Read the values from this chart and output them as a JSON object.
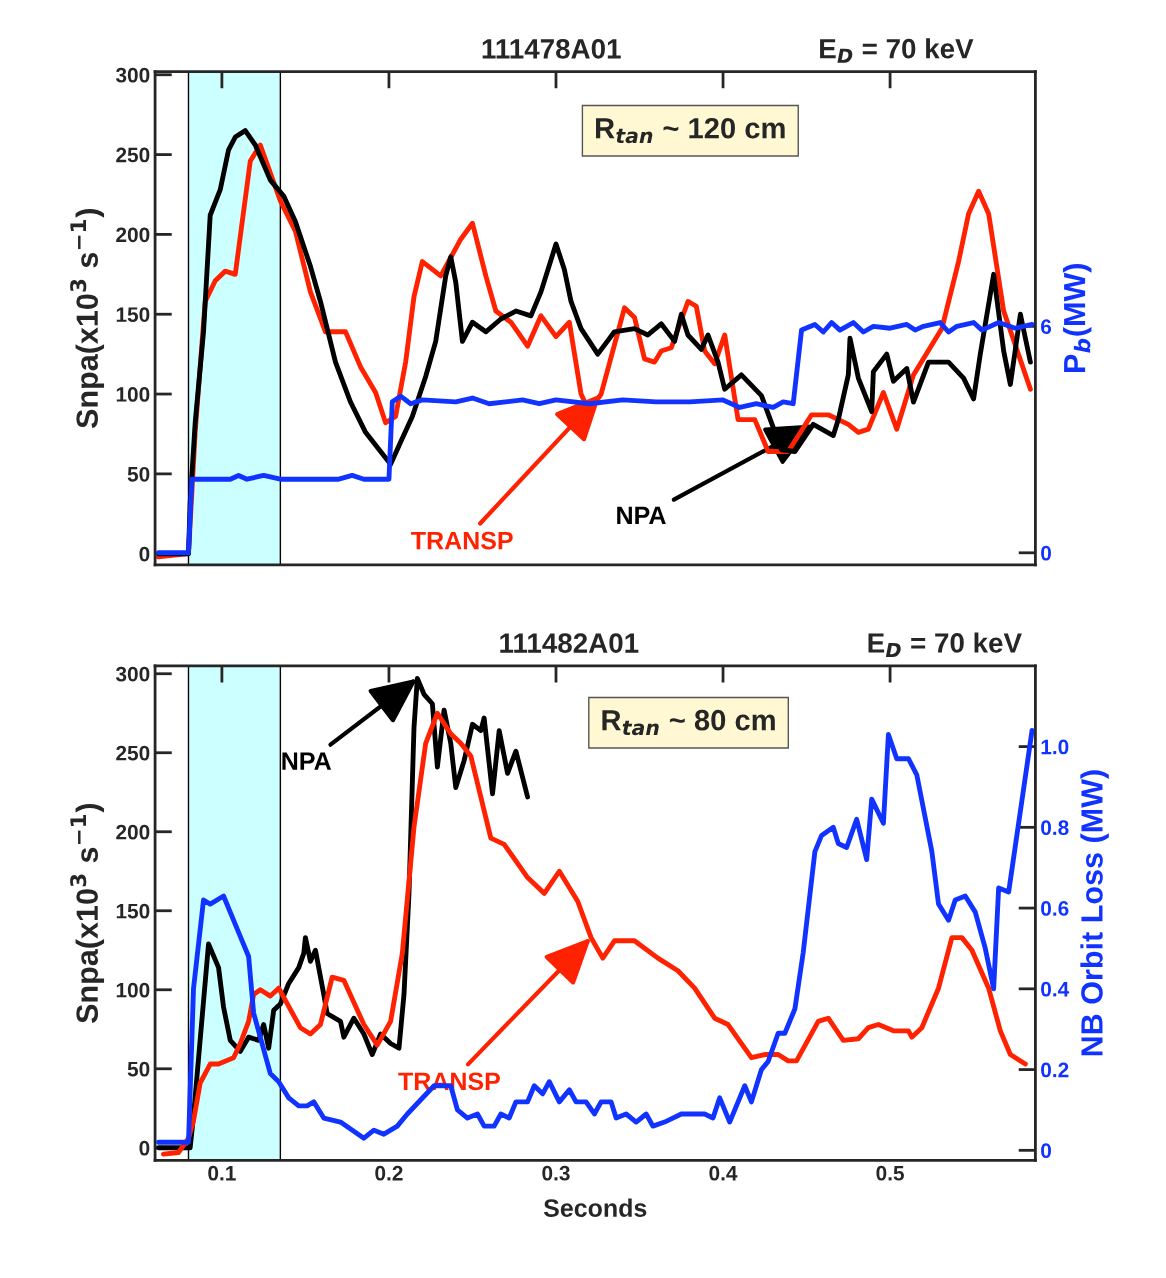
{
  "chart_data": [
    {
      "type": "line",
      "title": "111478A01",
      "subtitle": "E$_{D}$ = 70 keV",
      "ylabel": "Snpa(x10$^{3}$ s$^{−1}$)",
      "y2label": "P$_{b}$(MW)",
      "xlim": [
        0.06,
        0.587
      ],
      "xticks": [
        0.1,
        0.2,
        0.3,
        0.4,
        0.5
      ],
      "ylim": [
        -7,
        302
      ],
      "yticks": [
        0,
        50,
        100,
        150,
        200,
        250,
        300
      ],
      "y2lim": [
        -0.32,
        12.75
      ],
      "y2ticks": [
        0,
        6
      ],
      "tick_labels": "y",
      "bands": [
        {
          "axis": "x",
          "from": 0.08,
          "to": 0.135,
          "color": "#ccffff"
        }
      ],
      "annotations": [
        "R$_{tan}$ ~ 120 cm",
        {
          "text": "TRANSP",
          "x": 0.327,
          "y": 100
        },
        {
          "text": "NPA",
          "x": 0.454,
          "y": 81
        }
      ],
      "series": [
        {
          "color": "#ff2200",
          "x": [
            0.062,
            0.08,
            0.084,
            0.09,
            0.096,
            0.102,
            0.108,
            0.117,
            0.123,
            0.135,
            0.144,
            0.153,
            0.162,
            0.174,
            0.183,
            0.192,
            0.198,
            0.204,
            0.21,
            0.215,
            0.22,
            0.231,
            0.243,
            0.25,
            0.258,
            0.264,
            0.273,
            0.283,
            0.291,
            0.3,
            0.308,
            0.315,
            0.32,
            0.327,
            0.341,
            0.347,
            0.353,
            0.359,
            0.363,
            0.369,
            0.379,
            0.384,
            0.389,
            0.395,
            0.401,
            0.409,
            0.419,
            0.427,
            0.439,
            0.453,
            0.463,
            0.475,
            0.481,
            0.487,
            0.496,
            0.504,
            0.514,
            0.531,
            0.541,
            0.547,
            0.553,
            0.559,
            0.568,
            0.584
          ],
          "values": [
            -2,
            0,
            76,
            158,
            171,
            177,
            175,
            246,
            256,
            221,
            202,
            164,
            139,
            139,
            117,
            101,
            82,
            86,
            120,
            161,
            183,
            174,
            197,
            207,
            174,
            152,
            145,
            130,
            149,
            136,
            145,
            100,
            89,
            100,
            154,
            148,
            122,
            120,
            127,
            129,
            158,
            155,
            127,
            119,
            137,
            84,
            84,
            64,
            64,
            87,
            87,
            81,
            76,
            78,
            101,
            78,
            112,
            141,
            183,
            213,
            227,
            213,
            152,
            103
          ]
        },
        {
          "color": "#000000",
          "x": [
            0.062,
            0.08,
            0.081,
            0.084,
            0.089,
            0.093,
            0.099,
            0.104,
            0.108,
            0.114,
            0.12,
            0.129,
            0.137,
            0.144,
            0.153,
            0.159,
            0.168,
            0.177,
            0.186,
            0.195,
            0.201,
            0.207,
            0.214,
            0.222,
            0.228,
            0.234,
            0.237,
            0.24,
            0.244,
            0.25,
            0.258,
            0.267,
            0.276,
            0.285,
            0.291,
            0.3,
            0.305,
            0.309,
            0.315,
            0.325,
            0.335,
            0.347,
            0.355,
            0.363,
            0.371,
            0.375,
            0.379,
            0.387,
            0.391,
            0.397,
            0.401,
            0.411,
            0.423,
            0.435,
            0.443,
            0.454,
            0.466,
            0.469,
            0.475,
            0.476,
            0.481,
            0.489,
            0.49,
            0.498,
            0.502,
            0.51,
            0.514,
            0.523,
            0.535,
            0.544,
            0.55,
            0.554,
            0.562,
            0.568,
            0.572,
            0.578,
            0.584
          ],
          "values": [
            0,
            0,
            32,
            82,
            139,
            212,
            228,
            253,
            261,
            265,
            256,
            234,
            224,
            208,
            180,
            158,
            120,
            95,
            76,
            64,
            56,
            70,
            86,
            111,
            133,
            174,
            186,
            170,
            133,
            145,
            139,
            147,
            152,
            149,
            164,
            194,
            178,
            158,
            141,
            125,
            139,
            141,
            137,
            144,
            133,
            150,
            137,
            128,
            137,
            120,
            103,
            112,
            99,
            65,
            64,
            81,
            74,
            84,
            112,
            135,
            110,
            89,
            114,
            125,
            108,
            116,
            95,
            120,
            120,
            110,
            97,
            125,
            175,
            127,
            106,
            150,
            120
          ]
        },
        {
          "color": "#1133ff",
          "axis": "y2",
          "x": [
            0.062,
            0.08,
            0.082,
            0.105,
            0.11,
            0.115,
            0.125,
            0.135,
            0.17,
            0.178,
            0.185,
            0.2,
            0.202,
            0.207,
            0.213,
            0.22,
            0.24,
            0.25,
            0.26,
            0.28,
            0.29,
            0.3,
            0.32,
            0.34,
            0.36,
            0.38,
            0.4,
            0.41,
            0.42,
            0.43,
            0.436,
            0.442,
            0.447,
            0.455,
            0.46,
            0.465,
            0.47,
            0.478,
            0.484,
            0.49,
            0.5,
            0.51,
            0.515,
            0.52,
            0.53,
            0.535,
            0.54,
            0.55,
            0.555,
            0.565,
            0.575,
            0.585
          ],
          "values": [
            0,
            0,
            1.95,
            1.95,
            2.05,
            1.95,
            2.05,
            1.95,
            1.95,
            2.05,
            1.95,
            1.95,
            4.0,
            4.15,
            3.95,
            4.05,
            4.0,
            4.1,
            3.95,
            4.05,
            3.95,
            4.05,
            3.95,
            4.05,
            4.0,
            4.0,
            4.05,
            3.85,
            3.95,
            3.85,
            4.0,
            3.95,
            5.9,
            6.05,
            5.85,
            6.1,
            5.9,
            6.1,
            5.85,
            6.0,
            5.95,
            6.05,
            5.9,
            6.0,
            6.1,
            5.85,
            6.0,
            6.1,
            5.9,
            6.1,
            5.95,
            6.05
          ]
        }
      ]
    },
    {
      "type": "line",
      "title": "111482A01",
      "subtitle": "E$_{D}$ = 70 keV",
      "xlabel": "Seconds",
      "ylabel": "Snpa(x10$^{3}$ s$^{−1}$)",
      "y2label": "NB Orbit Loss (MW)",
      "xlim": [
        0.06,
        0.587
      ],
      "xticks": [
        0.1,
        0.2,
        0.3,
        0.4,
        0.5
      ],
      "ylim": [
        -8,
        305
      ],
      "yticks": [
        0,
        50,
        100,
        150,
        200,
        250,
        300
      ],
      "y2lim": [
        -0.025,
        1.2
      ],
      "y2ticks": [
        0,
        0.2,
        0.4,
        0.6,
        0.8,
        {
          "value": 1,
          "label": "1.0"
        }
      ],
      "bands": [
        {
          "axis": "x",
          "from": 0.08,
          "to": 0.135,
          "color": "#ccffff"
        }
      ],
      "annotations": [
        "R$_{tan}$ ~ 80 cm",
        {
          "text": "NPA",
          "x": 0.217,
          "y": 297
        },
        {
          "text": "TRANSP",
          "x": 0.321,
          "y": 133
        }
      ],
      "series": [
        {
          "color": "#000000",
          "x": [
            0.062,
            0.08,
            0.081,
            0.083,
            0.092,
            0.098,
            0.101,
            0.105,
            0.111,
            0.116,
            0.122,
            0.125,
            0.128,
            0.131,
            0.135,
            0.14,
            0.146,
            0.149,
            0.15,
            0.153,
            0.156,
            0.161,
            0.163,
            0.171,
            0.173,
            0.179,
            0.185,
            0.19,
            0.195,
            0.201,
            0.206,
            0.209,
            0.212,
            0.215,
            0.217,
            0.221,
            0.226,
            0.229,
            0.233,
            0.237,
            0.24,
            0.245,
            0.25,
            0.255,
            0.257,
            0.262,
            0.266,
            0.271,
            0.276,
            0.283
          ],
          "values": [
            0,
            0,
            0,
            20,
            129,
            114,
            89,
            68,
            61,
            70,
            68,
            78,
            63,
            87,
            91,
            104,
            114,
            123,
            133,
            118,
            125,
            97,
            85,
            80,
            70,
            82,
            72,
            59,
            72,
            66,
            63,
            97,
            161,
            266,
            297,
            287,
            281,
            241,
            277,
            256,
            228,
            245,
            268,
            264,
            272,
            224,
            264,
            237,
            251,
            222
          ]
        },
        {
          "color": "#ff2200",
          "x": [
            0.065,
            0.074,
            0.08,
            0.083,
            0.087,
            0.093,
            0.098,
            0.107,
            0.111,
            0.116,
            0.119,
            0.123,
            0.129,
            0.134,
            0.147,
            0.153,
            0.159,
            0.166,
            0.173,
            0.185,
            0.193,
            0.201,
            0.208,
            0.215,
            0.222,
            0.229,
            0.237,
            0.243,
            0.249,
            0.261,
            0.269,
            0.283,
            0.293,
            0.302,
            0.313,
            0.321,
            0.328,
            0.335,
            0.347,
            0.361,
            0.373,
            0.383,
            0.395,
            0.403,
            0.417,
            0.425,
            0.433,
            0.439,
            0.444,
            0.457,
            0.463,
            0.472,
            0.481,
            0.487,
            0.493,
            0.502,
            0.511,
            0.513,
            0.519,
            0.529,
            0.537,
            0.543,
            0.549,
            0.559,
            0.566,
            0.572,
            0.581
          ],
          "values": [
            -4,
            -3,
            6,
            17,
            41,
            53,
            53,
            57,
            66,
            80,
            97,
            100,
            96,
            101,
            76,
            72,
            78,
            108,
            106,
            78,
            65,
            80,
            123,
            203,
            256,
            275,
            262,
            256,
            248,
            196,
            192,
            171,
            161,
            175,
            156,
            133,
            120,
            131,
            131,
            120,
            112,
            101,
            82,
            78,
            57,
            59,
            59,
            55,
            55,
            80,
            82,
            68,
            69,
            76,
            78,
            74,
            74,
            70,
            76,
            101,
            133,
            133,
            125,
            101,
            74,
            59,
            53
          ]
        },
        {
          "color": "#1133ff",
          "axis": "y2",
          "x": [
            0.062,
            0.08,
            0.083,
            0.089,
            0.093,
            0.101,
            0.11,
            0.116,
            0.119,
            0.129,
            0.134,
            0.14,
            0.146,
            0.151,
            0.155,
            0.161,
            0.171,
            0.185,
            0.191,
            0.197,
            0.205,
            0.211,
            0.227,
            0.237,
            0.241,
            0.247,
            0.253,
            0.257,
            0.263,
            0.267,
            0.272,
            0.276,
            0.283,
            0.287,
            0.292,
            0.296,
            0.302,
            0.308,
            0.312,
            0.318,
            0.323,
            0.327,
            0.333,
            0.336,
            0.342,
            0.348,
            0.354,
            0.358,
            0.365,
            0.375,
            0.389,
            0.394,
            0.398,
            0.404,
            0.413,
            0.417,
            0.423,
            0.427,
            0.433,
            0.437,
            0.443,
            0.448,
            0.455,
            0.459,
            0.466,
            0.469,
            0.474,
            0.48,
            0.486,
            0.489,
            0.496,
            0.499,
            0.504,
            0.511,
            0.516,
            0.525,
            0.529,
            0.535,
            0.539,
            0.545,
            0.551,
            0.557,
            0.562,
            0.565,
            0.571,
            0.585
          ],
          "values": [
            0.02,
            0.02,
            0.4,
            0.62,
            0.61,
            0.63,
            0.54,
            0.48,
            0.34,
            0.19,
            0.17,
            0.13,
            0.11,
            0.11,
            0.12,
            0.08,
            0.07,
            0.03,
            0.05,
            0.04,
            0.06,
            0.09,
            0.16,
            0.16,
            0.1,
            0.08,
            0.09,
            0.06,
            0.06,
            0.09,
            0.08,
            0.12,
            0.12,
            0.16,
            0.14,
            0.17,
            0.12,
            0.15,
            0.12,
            0.12,
            0.09,
            0.12,
            0.12,
            0.08,
            0.09,
            0.07,
            0.09,
            0.06,
            0.07,
            0.09,
            0.09,
            0.08,
            0.13,
            0.07,
            0.16,
            0.12,
            0.2,
            0.22,
            0.29,
            0.29,
            0.35,
            0.49,
            0.74,
            0.78,
            0.8,
            0.76,
            0.75,
            0.82,
            0.72,
            0.87,
            0.81,
            1.03,
            0.97,
            0.97,
            0.93,
            0.74,
            0.61,
            0.57,
            0.62,
            0.63,
            0.59,
            0.5,
            0.4,
            0.65,
            0.64,
            1.04
          ]
        }
      ]
    }
  ]
}
